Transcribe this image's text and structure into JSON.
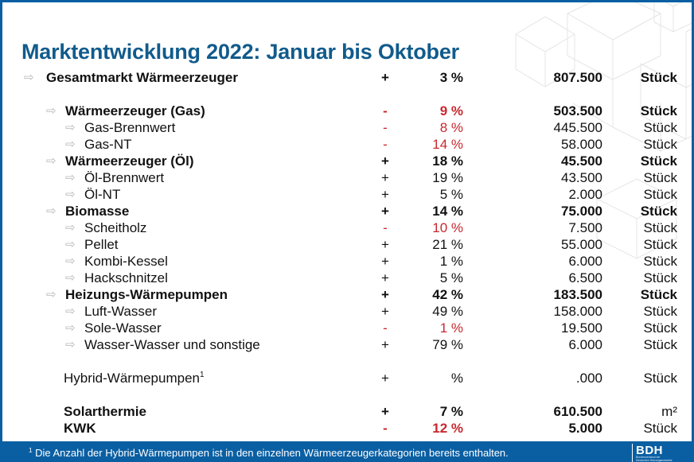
{
  "title": "Marktentwicklung 2022: Januar bis Oktober",
  "icons": {
    "bullet": "arrow-right-icon",
    "glyph": "⇨"
  },
  "colors": {
    "brand_blue": "#0a5fa3",
    "title_blue": "#115b8c",
    "negative_red": "#c8282e",
    "arrow_gray": "#b8b8b8"
  },
  "rows": [
    {
      "label": "Gesamtmarkt Wärmeerzeuger",
      "sign": "+",
      "pct": "3 %",
      "value": "807.500",
      "unit": "Stück",
      "level": 0,
      "bold": true,
      "negative": false,
      "arrow": true
    },
    {
      "label": "Wärmeerzeuger (Gas)",
      "sign": "-",
      "pct": "9 %",
      "value": "503.500",
      "unit": "Stück",
      "level": 1,
      "bold": true,
      "negative": true,
      "arrow": true
    },
    {
      "label": "Gas-Brennwert",
      "sign": "-",
      "pct": "8 %",
      "value": "445.500",
      "unit": "Stück",
      "level": 2,
      "bold": false,
      "negative": true,
      "arrow": true
    },
    {
      "label": "Gas-NT",
      "sign": "-",
      "pct": "14 %",
      "value": "58.000",
      "unit": "Stück",
      "level": 2,
      "bold": false,
      "negative": true,
      "arrow": true
    },
    {
      "label": "Wärmeerzeuger (Öl)",
      "sign": "+",
      "pct": "18 %",
      "value": "45.500",
      "unit": "Stück",
      "level": 1,
      "bold": true,
      "negative": false,
      "arrow": true
    },
    {
      "label": "Öl-Brennwert",
      "sign": "+",
      "pct": "19 %",
      "value": "43.500",
      "unit": "Stück",
      "level": 2,
      "bold": false,
      "negative": false,
      "arrow": true
    },
    {
      "label": "Öl-NT",
      "sign": "+",
      "pct": "5 %",
      "value": "2.000",
      "unit": "Stück",
      "level": 2,
      "bold": false,
      "negative": false,
      "arrow": true
    },
    {
      "label": "Biomasse",
      "sign": "+",
      "pct": "14 %",
      "value": "75.000",
      "unit": "Stück",
      "level": 1,
      "bold": true,
      "negative": false,
      "arrow": true
    },
    {
      "label": "Scheitholz",
      "sign": "-",
      "pct": "10 %",
      "value": "7.500",
      "unit": "Stück",
      "level": 2,
      "bold": false,
      "negative": true,
      "arrow": true
    },
    {
      "label": "Pellet",
      "sign": "+",
      "pct": "21 %",
      "value": "55.000",
      "unit": "Stück",
      "level": 2,
      "bold": false,
      "negative": false,
      "arrow": true
    },
    {
      "label": "Kombi-Kessel",
      "sign": "+",
      "pct": "1 %",
      "value": "6.000",
      "unit": "Stück",
      "level": 2,
      "bold": false,
      "negative": false,
      "arrow": true
    },
    {
      "label": "Hackschnitzel",
      "sign": "+",
      "pct": "5 %",
      "value": "6.500",
      "unit": "Stück",
      "level": 2,
      "bold": false,
      "negative": false,
      "arrow": true
    },
    {
      "label": "Heizungs-Wärmepumpen",
      "sign": "+",
      "pct": "42 %",
      "value": "183.500",
      "unit": "Stück",
      "level": 1,
      "bold": true,
      "negative": false,
      "arrow": true
    },
    {
      "label": "Luft-Wasser",
      "sign": "+",
      "pct": "49 %",
      "value": "158.000",
      "unit": "Stück",
      "level": 2,
      "bold": false,
      "negative": false,
      "arrow": true
    },
    {
      "label": "Sole-Wasser",
      "sign": "-",
      "pct": "1 %",
      "value": "19.500",
      "unit": "Stück",
      "level": 2,
      "bold": false,
      "negative": true,
      "arrow": true
    },
    {
      "label": "Wasser-Wasser und sonstige",
      "sign": "+",
      "pct": "79 %",
      "value": "6.000",
      "unit": "Stück",
      "level": 2,
      "bold": false,
      "negative": false,
      "arrow": true
    },
    {
      "label": "Hybrid-Wärmepumpen",
      "sup": "1",
      "sign": "+",
      "pct": "%",
      "value": ".000",
      "unit": "Stück",
      "level": 1,
      "bold": false,
      "negative": false,
      "arrow": false
    },
    {
      "label": "Solarthermie",
      "sign": "+",
      "pct": "7 %",
      "value": "610.500",
      "unit": "m²",
      "level": 1,
      "bold": true,
      "negative": false,
      "arrow": false,
      "unit_bold": false
    },
    {
      "label": "KWK",
      "sign": "-",
      "pct": "12 %",
      "value": "5.000",
      "unit": "Stück",
      "level": 1,
      "bold": true,
      "negative": true,
      "arrow": false,
      "unit_bold": false
    }
  ],
  "footer": {
    "footnote_marker": "1",
    "footnote_text": " Die Anzahl der Hybrid-Wärmepumpen ist in den einzelnen Wärmeerzeugerkategorien bereits enthalten.",
    "logo_text": "BDH",
    "logo_tagline_1": "Bundesverband der",
    "logo_tagline_2": "Deutschen Heizungsindustrie"
  }
}
